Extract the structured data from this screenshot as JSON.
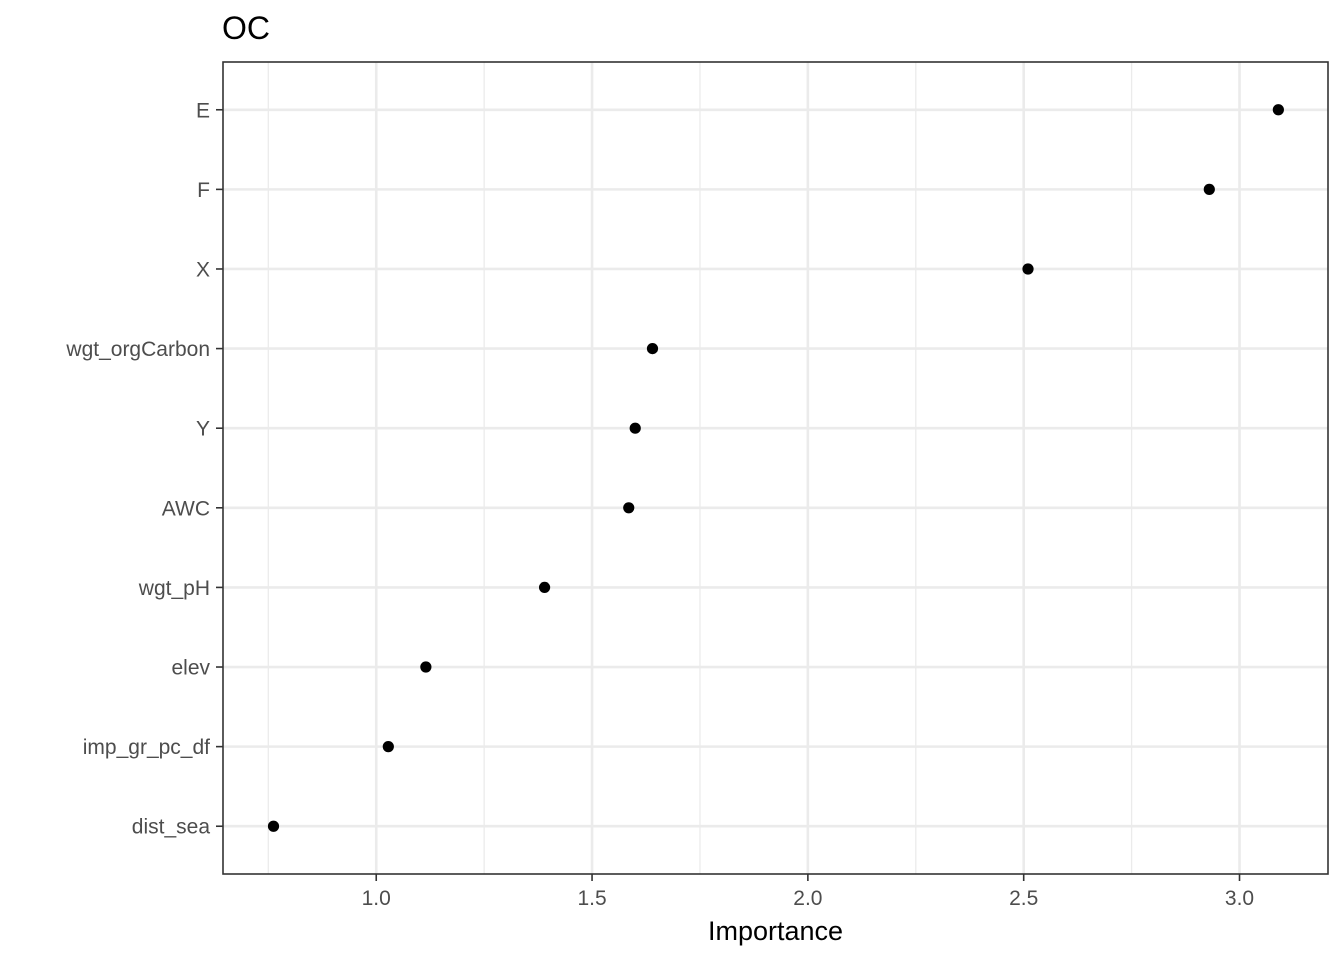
{
  "chart_data": {
    "type": "scatter",
    "title": "OC",
    "xlabel": "Importance",
    "ylabel": "",
    "xlim": [
      0.645,
      3.205
    ],
    "x_ticks": [
      1.0,
      1.5,
      2.0,
      2.5,
      3.0
    ],
    "x_tick_labels": [
      "1.0",
      "1.5",
      "2.0",
      "2.5",
      "3.0"
    ],
    "x_minor_ticks": [
      0.75,
      1.25,
      1.75,
      2.25,
      2.75
    ],
    "grid": true,
    "legend": "none",
    "point_color": "#000000",
    "categories": [
      "E",
      "F",
      "X",
      "wgt_orgCarbon",
      "Y",
      "AWC",
      "wgt_pH",
      "elev",
      "imp_gr_pc_df",
      "dist_sea"
    ],
    "values": [
      3.09,
      2.93,
      2.51,
      1.64,
      1.6,
      1.585,
      1.39,
      1.115,
      1.028,
      0.762
    ]
  }
}
